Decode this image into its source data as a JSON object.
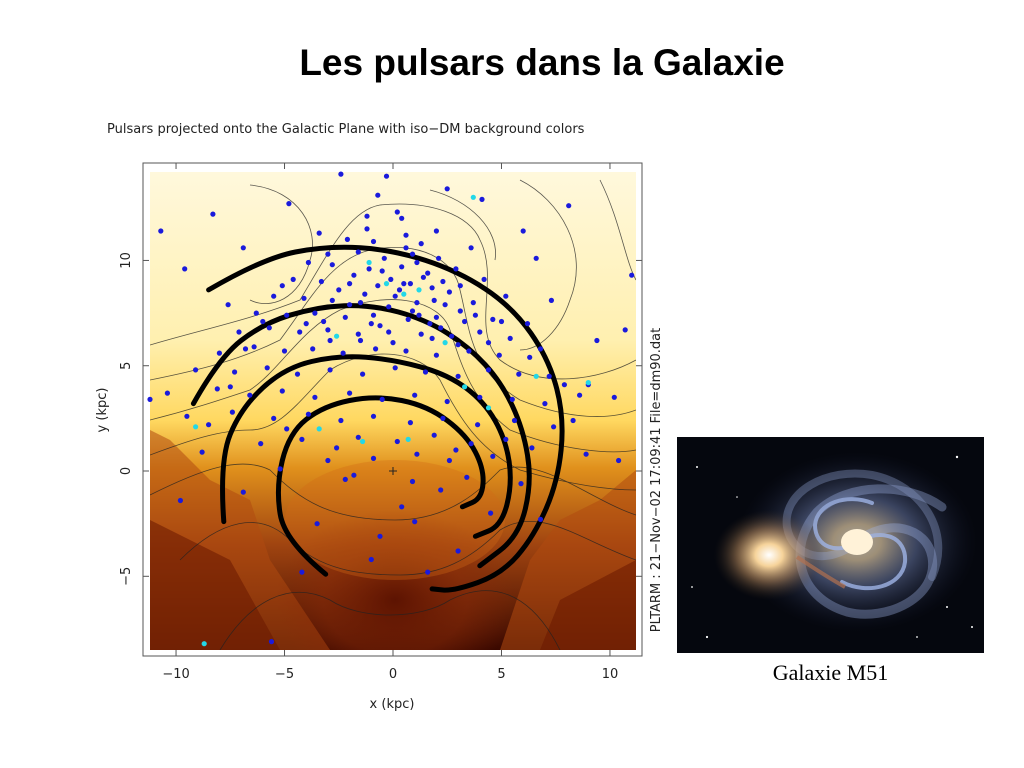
{
  "slide": {
    "title": "Les pulsars dans la Galaxie"
  },
  "figure": {
    "header": "Pulsars projected onto the Galactic Plane with iso−DM background colors",
    "side_label": "PLTARM : 21−Nov−02 17:09:41 File=dm90.dat"
  },
  "photo": {
    "caption": "Galaxie M51"
  },
  "chart_data": {
    "type": "scatter",
    "title": "Pulsars projected onto the Galactic Plane with iso−DM background colors",
    "xlabel": "x (kpc)",
    "ylabel": "y (kpc)",
    "xlim": [
      -11.2,
      11.2
    ],
    "ylim": [
      -8.5,
      14.2
    ],
    "x_ticks": [
      "−10",
      "−5",
      "0",
      "5",
      "10"
    ],
    "y_ticks": [
      "−5",
      "0",
      "5",
      "10"
    ],
    "grid": false,
    "colors": {
      "pulsar": "#1a1adc",
      "pulsar_alt": "#22d8e8",
      "arm": "#000000",
      "bg_light": "#fff6d0",
      "bg_mid": "#e89a30",
      "bg_dark": "#3a0800"
    },
    "sun_position": {
      "x": 0,
      "y": 0
    },
    "spiral_arms": [
      {
        "points": [
          [
            -8.5,
            8.6
          ],
          [
            -6,
            10.1
          ],
          [
            -3,
            10.7
          ],
          [
            0,
            10.5
          ],
          [
            3,
            9.5
          ],
          [
            5.5,
            7.8
          ],
          [
            7.2,
            5.3
          ],
          [
            7.9,
            2.5
          ],
          [
            7.6,
            -0.5
          ],
          [
            6.5,
            -3.1
          ],
          [
            5,
            -4.9
          ],
          [
            2.8,
            -5.7
          ],
          [
            1.8,
            -5.6
          ]
        ]
      },
      {
        "points": [
          [
            -9.2,
            3.2
          ],
          [
            -8,
            5.4
          ],
          [
            -6,
            7
          ],
          [
            -3.5,
            7.8
          ],
          [
            -1,
            7.9
          ],
          [
            1.5,
            7.2
          ],
          [
            3.5,
            5.9
          ],
          [
            5,
            4.2
          ],
          [
            6,
            2
          ],
          [
            6.4,
            -0.5
          ],
          [
            5.8,
            -3.1
          ],
          [
            4,
            -4.5
          ]
        ]
      },
      {
        "points": [
          [
            -7.8,
            -2.4
          ],
          [
            -8,
            0.5
          ],
          [
            -7,
            3
          ],
          [
            -5,
            4.9
          ],
          [
            -2.5,
            5.5
          ],
          [
            0,
            5.3
          ],
          [
            2.5,
            4.6
          ],
          [
            4.2,
            3.3
          ],
          [
            5.2,
            1.5
          ],
          [
            5.5,
            -0.6
          ],
          [
            5,
            -2.6
          ],
          [
            3.8,
            -3.1
          ]
        ]
      },
      {
        "points": [
          [
            -3.1,
            -4.9
          ],
          [
            -5,
            -3.3
          ],
          [
            -5.4,
            -0.8
          ],
          [
            -4.8,
            1.8
          ],
          [
            -3.2,
            3.1
          ],
          [
            -0.8,
            3.6
          ],
          [
            1.6,
            3.1
          ],
          [
            3.4,
            1.7
          ],
          [
            4.2,
            0.1
          ],
          [
            4.1,
            -1.3
          ],
          [
            3.2,
            -1.7
          ]
        ]
      }
    ],
    "series": [
      {
        "name": "",
        "points": [
          [
            -0.7,
            13.1
          ],
          [
            0.2,
            12.3
          ],
          [
            -1.2,
            12.1
          ],
          [
            -3.4,
            11.3
          ],
          [
            -2.1,
            11.0
          ],
          [
            -0.9,
            10.9
          ],
          [
            0.6,
            11.2
          ],
          [
            1.3,
            10.8
          ],
          [
            -1.6,
            10.4
          ],
          [
            -0.4,
            10.1
          ],
          [
            0.9,
            10.3
          ],
          [
            2.1,
            10.1
          ],
          [
            -2.8,
            9.8
          ],
          [
            -1.1,
            9.6
          ],
          [
            0.4,
            9.7
          ],
          [
            1.6,
            9.4
          ],
          [
            2.9,
            9.6
          ],
          [
            -4.6,
            9.1
          ],
          [
            -3.3,
            9.0
          ],
          [
            -2.0,
            8.9
          ],
          [
            -0.7,
            8.8
          ],
          [
            0.5,
            8.9
          ],
          [
            1.8,
            8.7
          ],
          [
            3.1,
            8.8
          ],
          [
            -5.5,
            8.3
          ],
          [
            -4.1,
            8.2
          ],
          [
            -2.8,
            8.1
          ],
          [
            -1.5,
            8.0
          ],
          [
            0.1,
            8.3
          ],
          [
            1.1,
            8.0
          ],
          [
            2.4,
            7.9
          ],
          [
            3.7,
            8.0
          ],
          [
            -6.3,
            7.5
          ],
          [
            -4.9,
            7.4
          ],
          [
            -3.6,
            7.5
          ],
          [
            -2.2,
            7.3
          ],
          [
            -0.9,
            7.4
          ],
          [
            0.7,
            7.2
          ],
          [
            2.0,
            7.3
          ],
          [
            3.3,
            7.1
          ],
          [
            4.6,
            7.2
          ],
          [
            -7.1,
            6.6
          ],
          [
            -5.7,
            6.8
          ],
          [
            -4.3,
            6.6
          ],
          [
            -3.0,
            6.7
          ],
          [
            -1.6,
            6.5
          ],
          [
            -0.2,
            6.6
          ],
          [
            1.3,
            6.5
          ],
          [
            2.7,
            6.4
          ],
          [
            4.0,
            6.6
          ],
          [
            5.4,
            6.3
          ],
          [
            -8.0,
            5.6
          ],
          [
            -6.4,
            5.9
          ],
          [
            -5.0,
            5.7
          ],
          [
            -3.7,
            5.8
          ],
          [
            -2.3,
            5.6
          ],
          [
            -0.8,
            5.8
          ],
          [
            0.6,
            5.7
          ],
          [
            2.0,
            5.5
          ],
          [
            3.5,
            5.7
          ],
          [
            4.9,
            5.5
          ],
          [
            6.3,
            5.4
          ],
          [
            -9.1,
            4.8
          ],
          [
            -7.3,
            4.7
          ],
          [
            -5.8,
            4.9
          ],
          [
            -4.4,
            4.6
          ],
          [
            -2.9,
            4.8
          ],
          [
            -1.4,
            4.6
          ],
          [
            0.1,
            4.9
          ],
          [
            1.5,
            4.7
          ],
          [
            3.0,
            4.5
          ],
          [
            4.4,
            4.8
          ],
          [
            5.8,
            4.6
          ],
          [
            7.2,
            4.5
          ],
          [
            -10.4,
            3.7
          ],
          [
            -8.1,
            3.9
          ],
          [
            -6.6,
            3.6
          ],
          [
            -5.1,
            3.8
          ],
          [
            -3.6,
            3.5
          ],
          [
            -2.0,
            3.7
          ],
          [
            -0.5,
            3.4
          ],
          [
            1.0,
            3.6
          ],
          [
            2.5,
            3.3
          ],
          [
            4.0,
            3.5
          ],
          [
            5.5,
            3.4
          ],
          [
            7.0,
            3.2
          ],
          [
            8.6,
            3.6
          ],
          [
            -9.5,
            2.6
          ],
          [
            -7.4,
            2.8
          ],
          [
            -5.5,
            2.5
          ],
          [
            -3.9,
            2.7
          ],
          [
            -2.4,
            2.4
          ],
          [
            -0.9,
            2.6
          ],
          [
            0.8,
            2.3
          ],
          [
            2.3,
            2.5
          ],
          [
            3.9,
            2.2
          ],
          [
            5.6,
            2.4
          ],
          [
            7.4,
            2.1
          ],
          [
            -1.6,
            1.6
          ],
          [
            0.2,
            1.4
          ],
          [
            1.9,
            1.7
          ],
          [
            3.6,
            1.3
          ],
          [
            5.2,
            1.5
          ],
          [
            -0.9,
            0.6
          ],
          [
            1.1,
            0.8
          ],
          [
            2.6,
            0.5
          ],
          [
            -2.2,
            -0.4
          ],
          [
            0.9,
            -0.5
          ],
          [
            3.4,
            -0.3
          ],
          [
            -1.0,
            -4.2
          ],
          [
            1.6,
            -4.8
          ],
          [
            -11.2,
            3.4
          ],
          [
            9.0,
            4.1
          ],
          [
            10.2,
            3.5
          ],
          [
            10.4,
            0.5
          ],
          [
            -10.7,
            11.4
          ],
          [
            -5.6,
            -8.1
          ],
          [
            -9.8,
            -1.4
          ],
          [
            -12.0,
            5.9
          ],
          [
            6.6,
            10.1
          ],
          [
            9.4,
            6.2
          ],
          [
            -6.9,
            10.6
          ],
          [
            4.1,
            12.9
          ],
          [
            -8.3,
            12.2
          ],
          [
            11.0,
            9.3
          ],
          [
            8.1,
            12.6
          ],
          [
            -11.8,
            7.8
          ],
          [
            -0.3,
            14.0
          ],
          [
            2.5,
            13.4
          ],
          [
            -4.8,
            12.7
          ],
          [
            6.0,
            11.4
          ],
          [
            10.7,
            6.7
          ],
          [
            -9.6,
            9.6
          ],
          [
            -2.4,
            14.1
          ],
          [
            7.3,
            8.1
          ],
          [
            -7.6,
            7.9
          ],
          [
            0.6,
            10.6
          ],
          [
            -1.3,
            8.4
          ],
          [
            1.4,
            9.2
          ],
          [
            -0.2,
            7.8
          ],
          [
            2.3,
            9.0
          ],
          [
            -2.5,
            8.6
          ],
          [
            0.9,
            7.6
          ],
          [
            -1.8,
            9.3
          ],
          [
            1.9,
            8.1
          ],
          [
            -0.5,
            9.5
          ],
          [
            3.1,
            7.6
          ],
          [
            -3.2,
            7.1
          ],
          [
            0.3,
            8.6
          ],
          [
            1.1,
            9.9
          ],
          [
            -1.0,
            7.0
          ],
          [
            2.6,
            8.5
          ],
          [
            -0.1,
            9.1
          ],
          [
            1.7,
            7.0
          ],
          [
            -2.0,
            7.9
          ],
          [
            0.8,
            8.9
          ],
          [
            -1.5,
            6.2
          ],
          [
            2.2,
            6.8
          ],
          [
            3.8,
            7.4
          ],
          [
            -0.6,
            6.9
          ],
          [
            1.2,
            7.4
          ],
          [
            4.4,
            6.1
          ],
          [
            -2.9,
            6.2
          ],
          [
            3.0,
            6.0
          ],
          [
            0.0,
            6.1
          ],
          [
            1.8,
            6.3
          ],
          [
            -4.0,
            7.0
          ],
          [
            5.0,
            7.1
          ],
          [
            -3.0,
            10.3
          ],
          [
            -1.2,
            11.5
          ],
          [
            0.4,
            12.0
          ],
          [
            2.0,
            11.4
          ],
          [
            3.6,
            10.6
          ],
          [
            -3.9,
            9.9
          ],
          [
            4.2,
            9.1
          ],
          [
            -5.1,
            8.8
          ],
          [
            5.2,
            8.3
          ],
          [
            -6.0,
            7.1
          ],
          [
            6.2,
            7.0
          ],
          [
            -6.8,
            5.8
          ],
          [
            6.8,
            5.8
          ],
          [
            -7.5,
            4.0
          ],
          [
            7.9,
            4.1
          ],
          [
            -8.5,
            2.2
          ],
          [
            8.3,
            2.4
          ],
          [
            -8.8,
            0.9
          ],
          [
            8.9,
            0.8
          ],
          [
            -6.1,
            1.3
          ],
          [
            6.4,
            1.1
          ],
          [
            -4.2,
            1.5
          ],
          [
            4.6,
            0.7
          ],
          [
            -3.0,
            0.5
          ],
          [
            2.2,
            -0.9
          ],
          [
            -1.8,
            -0.2
          ],
          [
            0.4,
            -1.7
          ],
          [
            -3.5,
            -2.5
          ],
          [
            4.5,
            -2.0
          ],
          [
            -4.2,
            -4.8
          ],
          [
            3.0,
            -3.8
          ],
          [
            -0.6,
            -3.1
          ],
          [
            1.0,
            -2.4
          ],
          [
            -2.6,
            1.1
          ],
          [
            2.9,
            1.0
          ],
          [
            -4.9,
            2.0
          ],
          [
            5.9,
            -0.6
          ],
          [
            -6.9,
            -1.0
          ],
          [
            6.8,
            -2.3
          ],
          [
            -5.2,
            0.1
          ]
        ]
      },
      {
        "name": "",
        "points": [
          [
            3.7,
            13.0
          ],
          [
            -1.1,
            9.9
          ],
          [
            0.5,
            8.4
          ],
          [
            -0.3,
            8.9
          ],
          [
            1.2,
            8.6
          ],
          [
            -2.6,
            6.4
          ],
          [
            2.4,
            6.1
          ],
          [
            3.3,
            4.0
          ],
          [
            -3.4,
            2.0
          ],
          [
            0.7,
            1.5
          ],
          [
            -1.4,
            1.4
          ],
          [
            6.6,
            4.5
          ],
          [
            9.0,
            4.2
          ],
          [
            -8.7,
            -8.2
          ],
          [
            -9.1,
            2.1
          ],
          [
            4.4,
            3.0
          ]
        ]
      }
    ]
  }
}
